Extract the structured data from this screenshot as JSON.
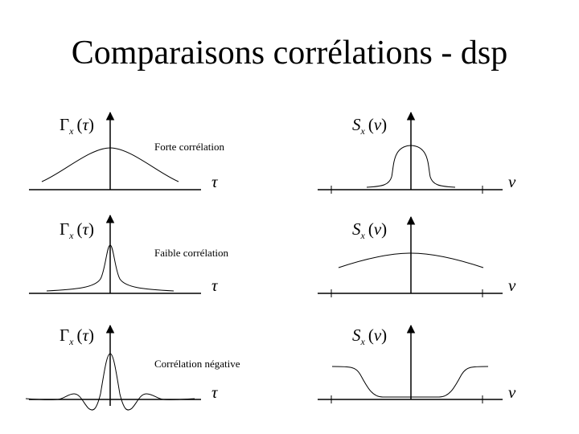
{
  "slide": {
    "title": "Comparaisons corrélations - dsp"
  },
  "rows": [
    {
      "name": "Forte corrélation",
      "autocorr": {
        "func": "Γ",
        "sub": "x",
        "arg": "τ",
        "axis": "τ"
      },
      "psd": {
        "func": "S",
        "sub": "x",
        "arg": "ν",
        "axis": "ν"
      }
    },
    {
      "name": "Faible corrélation",
      "autocorr": {
        "func": "Γ",
        "sub": "x",
        "arg": "τ",
        "axis": "τ"
      },
      "psd": {
        "func": "S",
        "sub": "x",
        "arg": "ν",
        "axis": "ν"
      }
    },
    {
      "name": "Corrélation négative",
      "autocorr": {
        "func": "Γ",
        "sub": "x",
        "arg": "τ",
        "axis": "τ"
      },
      "psd": {
        "func": "S",
        "sub": "x",
        "arg": "ν",
        "axis": "ν"
      }
    }
  ]
}
